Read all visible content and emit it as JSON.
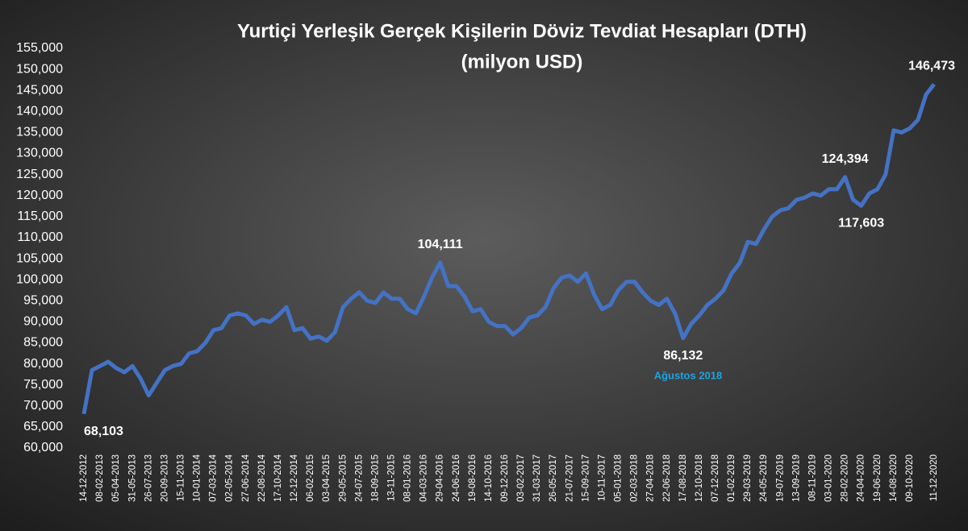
{
  "chart_data": {
    "type": "line",
    "title": "Yurtiçi Yerleşik Gerçek Kişilerin Döviz Tevdiat Hesapları (DTH)",
    "subtitle": "(milyon USD)",
    "annotations": [
      "Ağustos 2018"
    ],
    "categories": [
      "14-12-2012",
      null,
      "08-02-2013",
      null,
      "05-04-2013",
      null,
      "31-05-2013",
      null,
      "26-07-2013",
      null,
      "20-09-2013",
      null,
      "15-11-2013",
      null,
      "10-01-2014",
      null,
      "07-03-2014",
      null,
      "02-05-2014",
      null,
      "27-06-2014",
      null,
      "22-08-2014",
      null,
      "17-10-2014",
      null,
      "12-12-2014",
      null,
      "06-02-2015",
      null,
      "03-04-2015",
      null,
      "29-05-2015",
      null,
      "24-07-2015",
      null,
      "18-09-2015",
      null,
      "13-11-2015",
      null,
      "08-01-2016",
      null,
      "04-03-2016",
      null,
      "29-04-2016",
      null,
      "24-06-2016",
      null,
      "19-08-2016",
      null,
      "14-10-2016",
      null,
      "09-12-2016",
      null,
      "03-02-2017",
      null,
      "31-03-2017",
      null,
      "26-05-2017",
      null,
      "21-07-2017",
      null,
      "15-09-2017",
      null,
      "10-11-2017",
      null,
      "05-01-2018",
      null,
      "02-03-2018",
      null,
      "27-04-2018",
      null,
      "22-06-2018",
      null,
      "17-08-2018",
      null,
      "12-10-2018",
      null,
      "07-12-2018",
      null,
      "01-02-2019",
      null,
      "29-03-2019",
      null,
      "24-05-2019",
      null,
      "19-07-2019",
      null,
      "13-09-2019",
      null,
      "08-11-2019",
      null,
      "03-01-2020",
      null,
      "28-02-2020",
      null,
      "24-04-2020",
      null,
      "19-06-2020",
      null,
      "14-08-2020",
      null,
      "09-10-2020",
      null,
      null,
      "11-12-2020"
    ],
    "series": [
      {
        "name": "DTH",
        "color": "#4472c4",
        "values": [
          68103,
          78500,
          79500,
          80500,
          79000,
          78000,
          79500,
          76500,
          72500,
          75500,
          78500,
          79500,
          80000,
          82500,
          83000,
          85000,
          88000,
          88500,
          91500,
          92000,
          91500,
          89500,
          90500,
          90000,
          91500,
          93500,
          88000,
          88500,
          86000,
          86500,
          85500,
          87500,
          93500,
          95500,
          97000,
          95000,
          94500,
          97000,
          95500,
          95500,
          93000,
          92000,
          96000,
          100500,
          104111,
          98500,
          98500,
          96000,
          92500,
          93000,
          90000,
          89000,
          89000,
          87000,
          88500,
          91000,
          91500,
          93500,
          98000,
          100500,
          101000,
          99500,
          101500,
          96500,
          93000,
          94000,
          97500,
          99500,
          99500,
          97000,
          95000,
          94000,
          95500,
          92000,
          86132,
          89500,
          91500,
          94000,
          95500,
          97500,
          101500,
          104000,
          109000,
          108500,
          112000,
          115000,
          116500,
          117000,
          119000,
          119500,
          120500,
          120000,
          121500,
          121500,
          124394,
          119000,
          117603,
          120500,
          121500,
          125000,
          135500,
          135000,
          136000,
          138000,
          144000,
          146473
        ],
        "value_labels": [
          "68,103",
          null,
          null,
          null,
          null,
          null,
          null,
          null,
          null,
          null,
          null,
          null,
          null,
          null,
          null,
          null,
          null,
          null,
          null,
          null,
          null,
          null,
          null,
          null,
          null,
          null,
          null,
          null,
          null,
          null,
          null,
          null,
          null,
          null,
          null,
          null,
          null,
          null,
          null,
          null,
          null,
          null,
          null,
          null,
          "104,111",
          null,
          null,
          null,
          null,
          null,
          null,
          null,
          null,
          null,
          null,
          null,
          null,
          null,
          null,
          null,
          null,
          null,
          null,
          null,
          null,
          null,
          null,
          null,
          null,
          null,
          null,
          null,
          null,
          null,
          "86,132",
          null,
          null,
          null,
          null,
          null,
          null,
          null,
          null,
          null,
          null,
          null,
          null,
          null,
          null,
          null,
          null,
          null,
          null,
          null,
          "124,394",
          null,
          "117,603",
          null,
          null,
          null,
          null,
          null,
          null,
          null,
          null,
          "146,473"
        ]
      }
    ],
    "ylim": [
      60000,
      155000
    ],
    "yticks": [
      {
        "value": 60000,
        "label": "60,000"
      },
      {
        "value": 65000,
        "label": "65,000"
      },
      {
        "value": 70000,
        "label": "70,000"
      },
      {
        "value": 75000,
        "label": "75,000"
      },
      {
        "value": 80000,
        "label": "80,000"
      },
      {
        "value": 85000,
        "label": "85,000"
      },
      {
        "value": 90000,
        "label": "90,000"
      },
      {
        "value": 95000,
        "label": "95,000"
      },
      {
        "value": 100000,
        "label": "100,000"
      },
      {
        "value": 105000,
        "label": "105,000"
      },
      {
        "value": 110000,
        "label": "110,000"
      },
      {
        "value": 115000,
        "label": "115,000"
      },
      {
        "value": 120000,
        "label": "120,000"
      },
      {
        "value": 125000,
        "label": "125,000"
      },
      {
        "value": 130000,
        "label": "130,000"
      },
      {
        "value": 135000,
        "label": "135,000"
      },
      {
        "value": 140000,
        "label": "140,000"
      },
      {
        "value": 145000,
        "label": "145,000"
      },
      {
        "value": 150000,
        "label": "150,000"
      },
      {
        "value": 155000,
        "label": "155,000"
      }
    ],
    "grid": false
  }
}
